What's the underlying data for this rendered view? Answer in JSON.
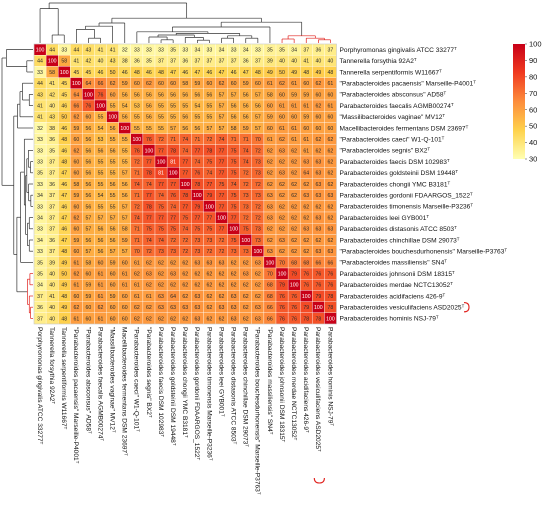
{
  "chart_data": {
    "type": "heatmap",
    "title": "",
    "xlabel": "",
    "ylabel": "",
    "colorbar": {
      "min": 30,
      "max": 100,
      "ticks": [
        100,
        90,
        80,
        70,
        60,
        50,
        40,
        30
      ],
      "colors": [
        "#ffffb2",
        "#fed24c",
        "#fd8d3c",
        "#f03b20",
        "#c80018"
      ]
    },
    "labels": [
      "Porphyromonas gingivalis ATCC 33277T",
      "Tannerella forsythia 92A2T",
      "Tannerella serpentiformis W11667T",
      "\"Parabacteroides pacaensis\" Marseille-P4001T",
      "\"Parabacteroides absconsus\" AD58T",
      "Parabacteroides faecalis AGMB00274T",
      "\"Massilibacteroides vaginae\" MV12T",
      "Macellibacteroides fermentans DSM 23697T",
      "\"Parabacteroides caeci\" W1-Q-101T",
      "\"Parabacteroides segnis\" BX2T",
      "Parabacteroides faecis DSM 102983T",
      "Parabacteroides goldsteinii DSM 19448T",
      "Parabacteroides chongii YMC B3181T",
      "Parabacteroides gordonii FDAARGOS_1522T",
      "Parabacteroides timonensis Marseille-P3236T",
      "Parabacteroides leei GYB001T",
      "Parabacteroides distasonis ATCC 8503T",
      "Parabacteroides chinchillae DSM 29073T",
      "\"Parabacteroides bouchesdurhonensis\" Marseille-P3763T",
      "\"Parabacteroides massiliensis\" SN4T",
      "Parabacteroides johnsonii DSM 18315T",
      "Parabacteroides merdae NCTC13052T",
      "Parabacteroides acidifaciens 426-9T",
      "Parabacteroides vesiculifaciens ASD2025T",
      "Parabacteroides hominis NSJ-79T"
    ],
    "values": [
      [
        100,
        44,
        33,
        44,
        43,
        41,
        41,
        32,
        33,
        33,
        33,
        35,
        33,
        34,
        33,
        34,
        33,
        34,
        33,
        35,
        35,
        34,
        37,
        36,
        37
      ],
      [
        44,
        100,
        58,
        41,
        42,
        40,
        43,
        38,
        36,
        35,
        37,
        37,
        36,
        37,
        37,
        37,
        37,
        36,
        37,
        39,
        40,
        40,
        41,
        40,
        40
      ],
      [
        33,
        58,
        100,
        45,
        45,
        46,
        50,
        46,
        48,
        46,
        48,
        47,
        46,
        47,
        46,
        47,
        46,
        47,
        48,
        49,
        50,
        49,
        48,
        49,
        48
      ],
      [
        44,
        41,
        45,
        100,
        64,
        66,
        62,
        59,
        60,
        62,
        60,
        60,
        58,
        59,
        60,
        62,
        60,
        59,
        60,
        61,
        62,
        61,
        60,
        62,
        61
      ],
      [
        43,
        42,
        45,
        64,
        100,
        76,
        60,
        56,
        56,
        56,
        56,
        56,
        56,
        56,
        56,
        57,
        57,
        56,
        57,
        58,
        60,
        59,
        59,
        60,
        60
      ],
      [
        41,
        40,
        46,
        66,
        76,
        100,
        55,
        54,
        53,
        56,
        55,
        55,
        55,
        54,
        55,
        57,
        56,
        56,
        56,
        60,
        61,
        61,
        61,
        62,
        61
      ],
      [
        41,
        43,
        50,
        62,
        60,
        55,
        100,
        56,
        55,
        56,
        55,
        55,
        56,
        55,
        55,
        57,
        56,
        56,
        57,
        59,
        60,
        60,
        59,
        60,
        60
      ],
      [
        32,
        38,
        46,
        59,
        56,
        54,
        56,
        100,
        55,
        55,
        55,
        57,
        56,
        56,
        57,
        57,
        58,
        59,
        57,
        60,
        61,
        61,
        60,
        60,
        60
      ],
      [
        33,
        36,
        48,
        60,
        56,
        53,
        55,
        55,
        100,
        76,
        72,
        71,
        74,
        71,
        72,
        74,
        71,
        71,
        70,
        61,
        62,
        61,
        61,
        62,
        62
      ],
      [
        33,
        35,
        46,
        62,
        56,
        56,
        56,
        55,
        76,
        100,
        77,
        78,
        74,
        77,
        78,
        77,
        75,
        74,
        72,
        62,
        63,
        62,
        61,
        62,
        62
      ],
      [
        33,
        37,
        48,
        60,
        56,
        55,
        55,
        55,
        72,
        77,
        100,
        81,
        77,
        74,
        75,
        77,
        75,
        74,
        73,
        62,
        62,
        62,
        63,
        63,
        62
      ],
      [
        35,
        37,
        47,
        60,
        56,
        55,
        55,
        57,
        71,
        78,
        81,
        100,
        77,
        76,
        74,
        77,
        75,
        72,
        73,
        62,
        63,
        62,
        64,
        63,
        62
      ],
      [
        33,
        36,
        46,
        58,
        56,
        55,
        56,
        56,
        74,
        74,
        77,
        77,
        100,
        78,
        77,
        75,
        74,
        72,
        72,
        62,
        62,
        62,
        62,
        63,
        62
      ],
      [
        34,
        37,
        47,
        59,
        56,
        54,
        55,
        56,
        71,
        77,
        74,
        76,
        78,
        100,
        79,
        77,
        75,
        73,
        73,
        63,
        62,
        62,
        63,
        63,
        63
      ],
      [
        33,
        37,
        46,
        60,
        56,
        55,
        55,
        57,
        72,
        78,
        75,
        74,
        77,
        79,
        100,
        77,
        75,
        73,
        72,
        63,
        62,
        62,
        62,
        62,
        62
      ],
      [
        34,
        37,
        47,
        62,
        57,
        57,
        57,
        57,
        74,
        77,
        77,
        77,
        75,
        77,
        77,
        100,
        77,
        72,
        72,
        63,
        62,
        62,
        62,
        63,
        62
      ],
      [
        33,
        37,
        46,
        60,
        57,
        56,
        56,
        58,
        71,
        75,
        75,
        75,
        74,
        75,
        75,
        77,
        100,
        75,
        73,
        62,
        62,
        62,
        63,
        63,
        63
      ],
      [
        34,
        36,
        47,
        59,
        56,
        56,
        56,
        59,
        71,
        74,
        74,
        72,
        72,
        73,
        73,
        72,
        75,
        100,
        73,
        62,
        63,
        62,
        62,
        62,
        62
      ],
      [
        33,
        37,
        48,
        60,
        57,
        56,
        57,
        57,
        70,
        72,
        73,
        73,
        72,
        73,
        72,
        72,
        73,
        73,
        100,
        63,
        62,
        62,
        62,
        63,
        63
      ],
      [
        35,
        39,
        49,
        61,
        58,
        60,
        59,
        60,
        61,
        62,
        62,
        62,
        62,
        63,
        63,
        63,
        62,
        62,
        63,
        100,
        70,
        68,
        68,
        66,
        66
      ],
      [
        35,
        40,
        50,
        62,
        60,
        61,
        60,
        61,
        62,
        63,
        62,
        63,
        62,
        62,
        62,
        62,
        62,
        63,
        62,
        70,
        100,
        79,
        76,
        76,
        76
      ],
      [
        34,
        40,
        49,
        61,
        59,
        61,
        60,
        61,
        61,
        62,
        62,
        62,
        62,
        62,
        62,
        62,
        62,
        62,
        62,
        68,
        79,
        100,
        76,
        76,
        76
      ],
      [
        37,
        41,
        48,
        60,
        59,
        61,
        59,
        60,
        61,
        61,
        63,
        64,
        62,
        63,
        62,
        62,
        63,
        62,
        62,
        68,
        76,
        76,
        100,
        79,
        78
      ],
      [
        36,
        40,
        49,
        62,
        60,
        62,
        60,
        60,
        62,
        62,
        63,
        63,
        63,
        63,
        62,
        63,
        63,
        62,
        63,
        66,
        76,
        76,
        79,
        100,
        78
      ],
      [
        37,
        40,
        48,
        61,
        60,
        61,
        60,
        60,
        62,
        62,
        62,
        62,
        62,
        63,
        62,
        62,
        63,
        62,
        63,
        66,
        76,
        76,
        78,
        78,
        100
      ]
    ]
  }
}
